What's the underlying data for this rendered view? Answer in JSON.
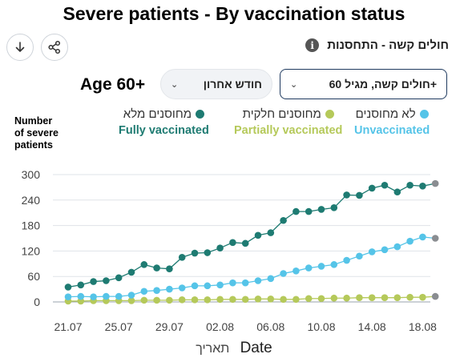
{
  "page": {
    "title": "Severe patients - By vaccination status",
    "info_title": "חולים קשה - התחסנות",
    "age_label": "Age 60+",
    "dropdown_group": "חולים קשה, מגיל 60+",
    "dropdown_period": "חודש אחרון",
    "y_axis_label_lines": [
      "Number",
      "of severe",
      "patients"
    ],
    "x_axis_title_en": "Date",
    "x_axis_title_he": "תאריך",
    "icons": {
      "download": "download-icon",
      "share": "share-icon",
      "info": "info-icon",
      "chevron": "chevron-down-icon"
    }
  },
  "legend": [
    {
      "he": "מחוסנים מלא",
      "en": "Fully vaccinated",
      "color": "#1e7b72"
    },
    {
      "he": "מחוסנים חלקית",
      "en": "Partially vaccinated",
      "color": "#b5c95a"
    },
    {
      "he": "לא מחוסנים",
      "en": "Unvaccinated",
      "color": "#55c4e8"
    }
  ],
  "chart_data": {
    "type": "line",
    "x": [
      "21.07",
      "22.07",
      "23.07",
      "24.07",
      "25.07",
      "26.07",
      "27.07",
      "28.07",
      "29.07",
      "30.07",
      "31.07",
      "01.08",
      "02.08",
      "03.08",
      "04.08",
      "05.08",
      "06.08",
      "07.08",
      "08.08",
      "09.08",
      "10.08",
      "11.08",
      "12.08",
      "13.08",
      "14.08",
      "15.08",
      "16.08",
      "17.08",
      "18.08",
      "19.08"
    ],
    "x_tick_labels": [
      "21.07",
      "25.07",
      "29.07",
      "02.08",
      "06.08",
      "10.08",
      "14.08",
      "18.08"
    ],
    "y_ticks": [
      0,
      60,
      120,
      180,
      240,
      300
    ],
    "ylim": [
      0,
      300
    ],
    "xlabel": "Date",
    "ylabel": "Number of severe patients",
    "grid": true,
    "series": [
      {
        "name": "Fully vaccinated",
        "color": "#1e7b72",
        "values": [
          35,
          40,
          48,
          50,
          57,
          70,
          88,
          80,
          78,
          105,
          115,
          116,
          127,
          140,
          138,
          157,
          163,
          192,
          213,
          213,
          218,
          222,
          252,
          251,
          268,
          275,
          259,
          275,
          273,
          279
        ]
      },
      {
        "name": "Partially vaccinated",
        "color": "#b5c95a",
        "values": [
          2,
          2,
          3,
          3,
          3,
          3,
          4,
          4,
          4,
          5,
          5,
          5,
          6,
          6,
          6,
          7,
          7,
          6,
          6,
          8,
          8,
          9,
          9,
          10,
          10,
          10,
          10,
          11,
          11,
          13
        ]
      },
      {
        "name": "Unvaccinated",
        "color": "#55c4e8",
        "values": [
          12,
          13,
          12,
          13,
          13,
          16,
          25,
          27,
          30,
          33,
          38,
          38,
          40,
          45,
          45,
          50,
          55,
          67,
          73,
          80,
          84,
          88,
          98,
          108,
          118,
          123,
          130,
          143,
          153,
          150
        ]
      }
    ]
  }
}
